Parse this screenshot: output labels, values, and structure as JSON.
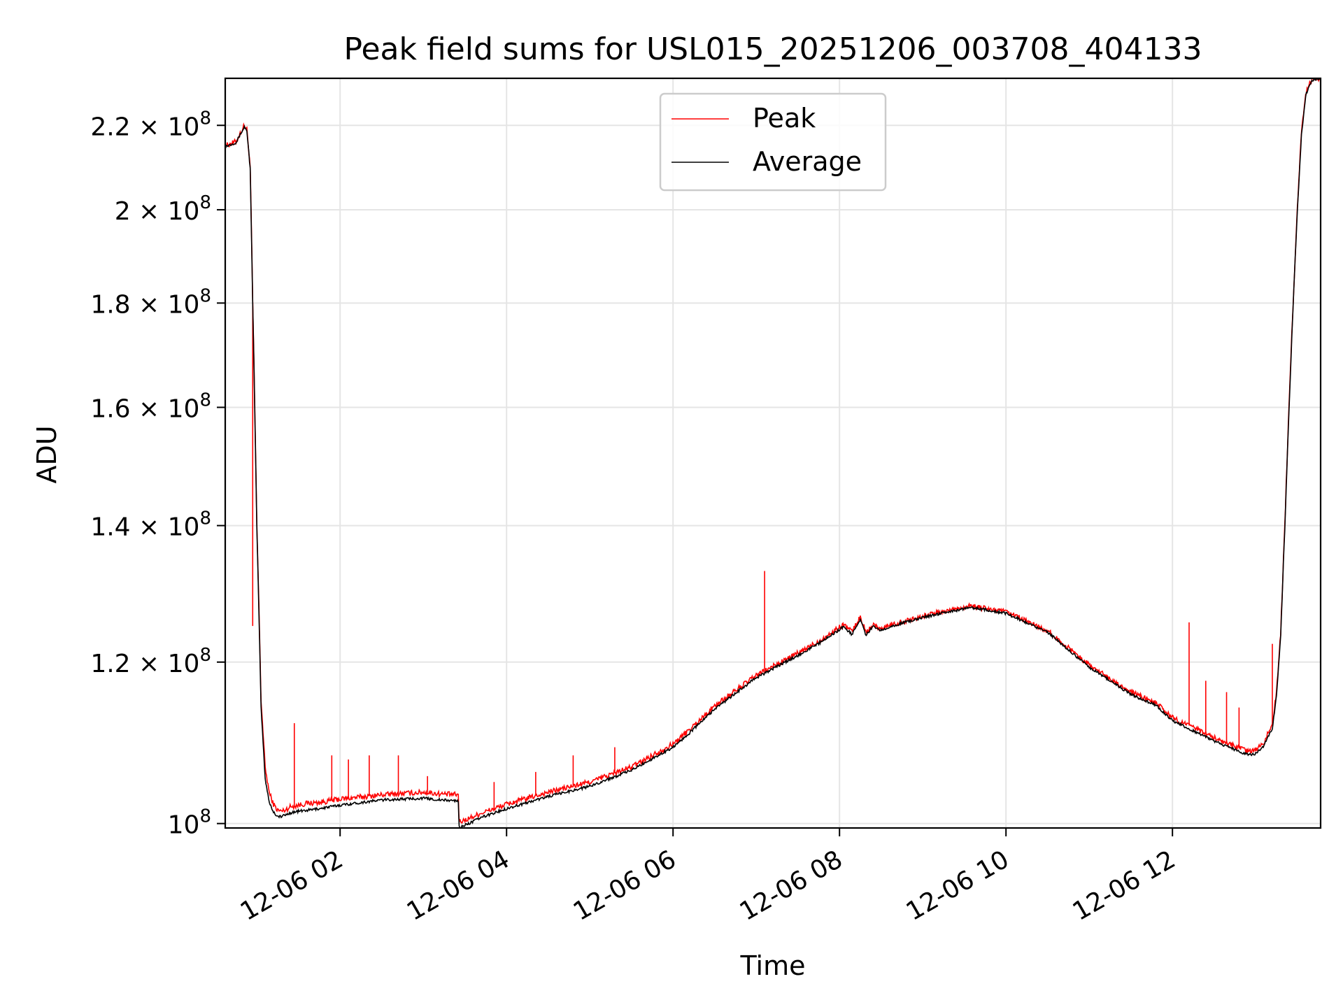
{
  "chart_data": {
    "type": "line",
    "title": "Peak field sums for USL015_20251206_003708_404133",
    "xlabel": "Time",
    "ylabel": "ADU",
    "yscale": "log",
    "ylim": [
      99500000,
      232000000
    ],
    "xlim_hours": [
      0.62,
      13.78
    ],
    "grid": true,
    "legend_position": "upper center",
    "x_ticks": [
      {
        "hour": 2,
        "label": "12-06 02"
      },
      {
        "hour": 4,
        "label": "12-06 04"
      },
      {
        "hour": 6,
        "label": "12-06 06"
      },
      {
        "hour": 8,
        "label": "12-06 08"
      },
      {
        "hour": 10,
        "label": "12-06 10"
      },
      {
        "hour": 12,
        "label": "12-06 12"
      }
    ],
    "y_ticks": [
      {
        "value": 100000000,
        "mantissa": "",
        "exponent": "8"
      },
      {
        "value": 120000000,
        "mantissa": "1.2",
        "exponent": "8"
      },
      {
        "value": 140000000,
        "mantissa": "1.4",
        "exponent": "8"
      },
      {
        "value": 160000000,
        "mantissa": "1.6",
        "exponent": "8"
      },
      {
        "value": 180000000,
        "mantissa": "1.8",
        "exponent": "8"
      },
      {
        "value": 200000000,
        "mantissa": "2",
        "exponent": "8"
      },
      {
        "value": 220000000,
        "mantissa": "2.2",
        "exponent": "8"
      }
    ],
    "series": [
      {
        "name": "Peak",
        "color": "#ff0000",
        "x_hours": [
          0.62,
          0.75,
          0.85,
          0.88,
          0.92,
          0.95,
          1.0,
          1.05,
          1.1,
          1.15,
          1.2,
          1.25,
          1.3,
          1.35,
          1.4,
          1.5,
          1.6,
          1.75,
          2.0,
          2.5,
          3.0,
          3.2,
          3.42,
          3.43,
          3.5,
          3.7,
          4.0,
          4.5,
          5.0,
          5.5,
          6.0,
          6.2,
          6.5,
          7.0,
          7.5,
          7.8,
          8.05,
          8.15,
          8.25,
          8.32,
          8.4,
          8.5,
          8.6,
          9.0,
          9.3,
          9.5,
          9.55,
          10.0,
          10.5,
          11.0,
          11.5,
          11.8,
          12.0,
          12.3,
          12.6,
          12.9,
          13.0,
          13.1,
          13.2,
          13.25,
          13.3,
          13.35,
          13.4,
          13.45,
          13.5,
          13.55,
          13.6,
          13.65,
          13.7,
          13.78
        ],
        "values": [
          215000000,
          216000000,
          220000000,
          219000000,
          210000000,
          180000000,
          140000000,
          115000000,
          106500000,
          103500000,
          102200000,
          101500000,
          101400000,
          101600000,
          101900000,
          102100000,
          102300000,
          102400000,
          102800000,
          103300000,
          103600000,
          103400000,
          103300000,
          100200000,
          100400000,
          101200000,
          102200000,
          103600000,
          104800000,
          106600000,
          109400000,
          111200000,
          114200000,
          118200000,
          121200000,
          123200000,
          125200000,
          124200000,
          126300000,
          124000000,
          125200000,
          124600000,
          125100000,
          126400000,
          127200000,
          127700000,
          127900000,
          127000000,
          124300000,
          119600000,
          116000000,
          114600000,
          112700000,
          111200000,
          109700000,
          108500000,
          108600000,
          109600000,
          111900000,
          116000000,
          124000000,
          140000000,
          160000000,
          180000000,
          200000000,
          218000000,
          228000000,
          231000000,
          232000000,
          232000000
        ],
        "spikes": [
          {
            "hour": 0.95,
            "value": 125000000
          },
          {
            "hour": 1.45,
            "value": 112000000
          },
          {
            "hour": 1.9,
            "value": 108000000
          },
          {
            "hour": 2.1,
            "value": 107500000
          },
          {
            "hour": 2.35,
            "value": 108000000
          },
          {
            "hour": 2.7,
            "value": 108000000
          },
          {
            "hour": 3.05,
            "value": 105500000
          },
          {
            "hour": 3.85,
            "value": 104800000
          },
          {
            "hour": 4.35,
            "value": 106000000
          },
          {
            "hour": 4.8,
            "value": 108000000
          },
          {
            "hour": 5.1,
            "value": 105000000
          },
          {
            "hour": 5.3,
            "value": 109000000
          },
          {
            "hour": 5.8,
            "value": 108000000
          },
          {
            "hour": 7.1,
            "value": 133000000
          },
          {
            "hour": 9.6,
            "value": 127500000
          },
          {
            "hour": 12.2,
            "value": 125500000
          },
          {
            "hour": 12.4,
            "value": 117500000
          },
          {
            "hour": 12.65,
            "value": 116000000
          },
          {
            "hour": 12.8,
            "value": 114000000
          },
          {
            "hour": 13.2,
            "value": 122500000
          }
        ]
      },
      {
        "name": "Average",
        "color": "#000000",
        "x_hours": [
          0.62,
          0.75,
          0.85,
          0.88,
          0.92,
          0.95,
          1.0,
          1.05,
          1.1,
          1.15,
          1.2,
          1.25,
          1.3,
          1.35,
          1.4,
          1.5,
          1.6,
          1.75,
          2.0,
          2.5,
          3.0,
          3.2,
          3.42,
          3.43,
          3.5,
          3.7,
          4.0,
          4.5,
          5.0,
          5.5,
          6.0,
          6.2,
          6.5,
          7.0,
          7.5,
          7.8,
          8.05,
          8.15,
          8.25,
          8.32,
          8.4,
          8.5,
          8.6,
          9.0,
          9.3,
          9.5,
          9.55,
          10.0,
          10.5,
          11.0,
          11.5,
          11.8,
          12.0,
          12.3,
          12.6,
          12.9,
          13.0,
          13.1,
          13.2,
          13.25,
          13.3,
          13.35,
          13.4,
          13.45,
          13.5,
          13.55,
          13.6,
          13.65,
          13.7,
          13.78
        ],
        "values": [
          214800000,
          215800000,
          219600000,
          218700000,
          209500000,
          179500000,
          139500000,
          114000000,
          105200000,
          102400000,
          101300000,
          100800000,
          100800000,
          101000000,
          101200000,
          101400000,
          101500000,
          101700000,
          102100000,
          102700000,
          102900000,
          102700000,
          102600000,
          99600000,
          99800000,
          100700000,
          101700000,
          103100000,
          104300000,
          106200000,
          109000000,
          110800000,
          113800000,
          117900000,
          120900000,
          122900000,
          124900000,
          123800000,
          125900000,
          123700000,
          124900000,
          124400000,
          124900000,
          126200000,
          127000000,
          127400000,
          127700000,
          126800000,
          124100000,
          119300000,
          115700000,
          114300000,
          112300000,
          110800000,
          109300000,
          108100000,
          108200000,
          109200000,
          111400000,
          115500000,
          123500000,
          139500000,
          159500000,
          179500000,
          199500000,
          217500000,
          227500000,
          230500000,
          231800000,
          232000000
        ]
      }
    ]
  }
}
